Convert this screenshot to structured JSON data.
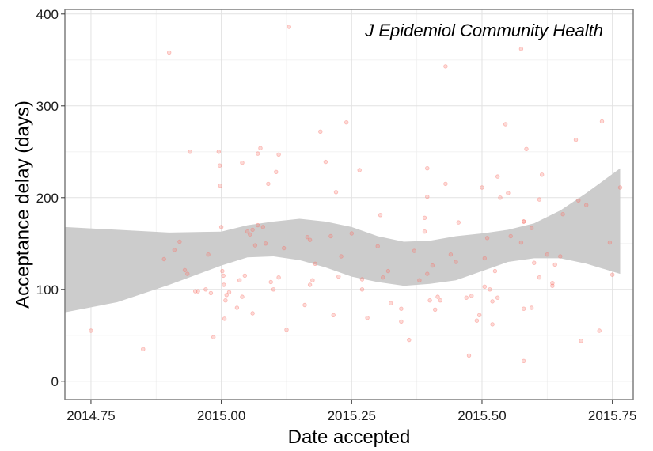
{
  "chart_data": {
    "type": "scatter",
    "annotation": "J Epidemiol Community Health",
    "xlabel": "Date accepted",
    "ylabel": "Acceptance delay (days)",
    "xlim": [
      2014.7,
      2015.79
    ],
    "ylim": [
      -20,
      405
    ],
    "x_ticks": [
      2014.75,
      2015.0,
      2015.25,
      2015.5,
      2015.75
    ],
    "x_tick_labels": [
      "2014.75",
      "2015.00",
      "2015.25",
      "2015.50",
      "2015.75"
    ],
    "y_ticks": [
      0,
      100,
      200,
      300,
      400
    ],
    "y_tick_labels": [
      "0",
      "100",
      "200",
      "300",
      "400"
    ],
    "grid": true,
    "point_color": "#f8766d",
    "band_color": "#cccccc",
    "points": [
      [
        2014.75,
        55
      ],
      [
        2014.85,
        35
      ],
      [
        2014.89,
        133
      ],
      [
        2014.9,
        358
      ],
      [
        2014.91,
        143
      ],
      [
        2014.92,
        152
      ],
      [
        2014.93,
        121
      ],
      [
        2014.935,
        117
      ],
      [
        2014.94,
        250
      ],
      [
        2014.95,
        98
      ],
      [
        2014.955,
        98
      ],
      [
        2014.97,
        100
      ],
      [
        2014.975,
        138
      ],
      [
        2014.98,
        96
      ],
      [
        2014.985,
        48
      ],
      [
        2014.995,
        250
      ],
      [
        2014.997,
        235
      ],
      [
        2014.998,
        213
      ],
      [
        2015.0,
        168
      ],
      [
        2015.002,
        120
      ],
      [
        2015.004,
        115
      ],
      [
        2015.005,
        105
      ],
      [
        2015.006,
        68
      ],
      [
        2015.008,
        88
      ],
      [
        2015.01,
        94
      ],
      [
        2015.015,
        97
      ],
      [
        2015.03,
        80
      ],
      [
        2015.035,
        110
      ],
      [
        2015.04,
        238
      ],
      [
        2015.04,
        92
      ],
      [
        2015.045,
        115
      ],
      [
        2015.05,
        163
      ],
      [
        2015.055,
        160
      ],
      [
        2015.06,
        165
      ],
      [
        2015.06,
        74
      ],
      [
        2015.065,
        148
      ],
      [
        2015.07,
        170
      ],
      [
        2015.07,
        248
      ],
      [
        2015.075,
        254
      ],
      [
        2015.08,
        168
      ],
      [
        2015.085,
        150
      ],
      [
        2015.09,
        215
      ],
      [
        2015.095,
        108
      ],
      [
        2015.1,
        100
      ],
      [
        2015.105,
        228
      ],
      [
        2015.11,
        113
      ],
      [
        2015.11,
        247
      ],
      [
        2015.12,
        145
      ],
      [
        2015.125,
        56
      ],
      [
        2015.13,
        386
      ],
      [
        2015.16,
        83
      ],
      [
        2015.165,
        157
      ],
      [
        2015.17,
        154
      ],
      [
        2015.17,
        105
      ],
      [
        2015.175,
        110
      ],
      [
        2015.18,
        128
      ],
      [
        2015.19,
        272
      ],
      [
        2015.2,
        239
      ],
      [
        2015.21,
        158
      ],
      [
        2015.215,
        72
      ],
      [
        2015.22,
        206
      ],
      [
        2015.225,
        114
      ],
      [
        2015.23,
        136
      ],
      [
        2015.24,
        282
      ],
      [
        2015.25,
        161
      ],
      [
        2015.265,
        230
      ],
      [
        2015.27,
        111
      ],
      [
        2015.27,
        100
      ],
      [
        2015.28,
        69
      ],
      [
        2015.3,
        147
      ],
      [
        2015.305,
        181
      ],
      [
        2015.31,
        113
      ],
      [
        2015.32,
        120
      ],
      [
        2015.325,
        85
      ],
      [
        2015.345,
        79
      ],
      [
        2015.345,
        65
      ],
      [
        2015.36,
        45
      ],
      [
        2015.37,
        142
      ],
      [
        2015.38,
        110
      ],
      [
        2015.39,
        163
      ],
      [
        2015.39,
        178
      ],
      [
        2015.395,
        201
      ],
      [
        2015.395,
        117
      ],
      [
        2015.395,
        232
      ],
      [
        2015.4,
        88
      ],
      [
        2015.405,
        126
      ],
      [
        2015.41,
        78
      ],
      [
        2015.415,
        92
      ],
      [
        2015.42,
        88
      ],
      [
        2015.43,
        343
      ],
      [
        2015.43,
        215
      ],
      [
        2015.44,
        138
      ],
      [
        2015.45,
        130
      ],
      [
        2015.455,
        173
      ],
      [
        2015.47,
        91
      ],
      [
        2015.475,
        28
      ],
      [
        2015.48,
        93
      ],
      [
        2015.49,
        66
      ],
      [
        2015.495,
        72
      ],
      [
        2015.5,
        211
      ],
      [
        2015.505,
        103
      ],
      [
        2015.505,
        134
      ],
      [
        2015.51,
        156
      ],
      [
        2015.515,
        100
      ],
      [
        2015.52,
        62
      ],
      [
        2015.52,
        87
      ],
      [
        2015.525,
        120
      ],
      [
        2015.53,
        223
      ],
      [
        2015.53,
        91
      ],
      [
        2015.535,
        200
      ],
      [
        2015.545,
        280
      ],
      [
        2015.55,
        205
      ],
      [
        2015.555,
        158
      ],
      [
        2015.575,
        151
      ],
      [
        2015.575,
        362
      ],
      [
        2015.58,
        174
      ],
      [
        2015.58,
        174
      ],
      [
        2015.58,
        79
      ],
      [
        2015.58,
        22
      ],
      [
        2015.585,
        253
      ],
      [
        2015.595,
        167
      ],
      [
        2015.595,
        80
      ],
      [
        2015.6,
        129
      ],
      [
        2015.61,
        198
      ],
      [
        2015.61,
        113
      ],
      [
        2015.615,
        225
      ],
      [
        2015.625,
        138
      ],
      [
        2015.635,
        107
      ],
      [
        2015.635,
        104
      ],
      [
        2015.64,
        127
      ],
      [
        2015.65,
        136
      ],
      [
        2015.655,
        182
      ],
      [
        2015.68,
        263
      ],
      [
        2015.685,
        197
      ],
      [
        2015.69,
        44
      ],
      [
        2015.7,
        192
      ],
      [
        2015.725,
        55
      ],
      [
        2015.73,
        283
      ],
      [
        2015.745,
        151
      ],
      [
        2015.75,
        116
      ],
      [
        2015.765,
        211
      ]
    ],
    "ci_band": {
      "x": [
        2014.7,
        2014.8,
        2014.9,
        2015.0,
        2015.05,
        2015.1,
        2015.15,
        2015.2,
        2015.25,
        2015.3,
        2015.35,
        2015.4,
        2015.45,
        2015.5,
        2015.55,
        2015.6,
        2015.65,
        2015.7,
        2015.765
      ],
      "upper": [
        168,
        165,
        162,
        163,
        170,
        174,
        177,
        174,
        168,
        158,
        152,
        153,
        158,
        161,
        165,
        172,
        186,
        205,
        232
      ],
      "lower": [
        75,
        86,
        105,
        126,
        135,
        136,
        132,
        124,
        114,
        108,
        104,
        106,
        110,
        120,
        130,
        134,
        134,
        128,
        117
      ]
    }
  }
}
